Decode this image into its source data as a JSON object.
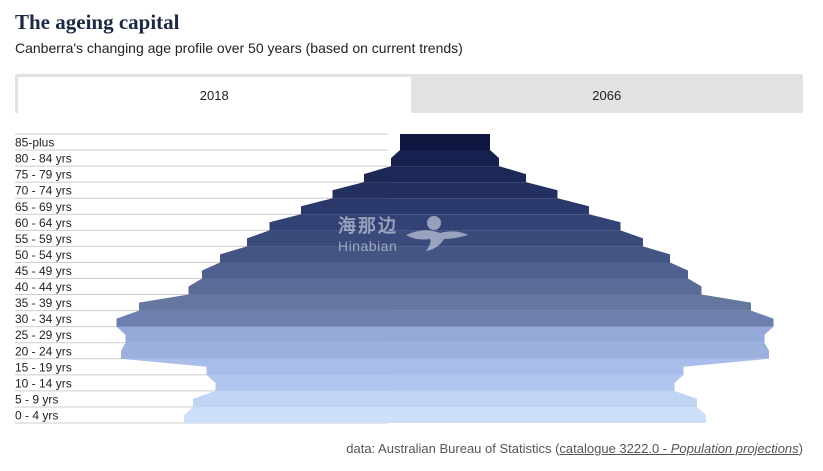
{
  "header": {
    "title": "The ageing capital",
    "subtitle": "Canberra's changing age profile over 50 years (based on current trends)"
  },
  "tabs": [
    {
      "label": "2018",
      "active": true
    },
    {
      "label": "2066",
      "active": false
    }
  ],
  "chart_data": {
    "type": "area",
    "orientation": "horizontal-symmetric",
    "title": "",
    "xlabel": "",
    "ylabel": "",
    "categories": [
      "0 - 4 yrs",
      "5 - 9 yrs",
      "10 - 14 yrs",
      "15 - 19 yrs",
      "20 - 24 yrs",
      "25 - 29 yrs",
      "30 - 34 yrs",
      "35 - 39 yrs",
      "40 - 44 yrs",
      "45 - 49 yrs",
      "50 - 54 yrs",
      "55 - 59 yrs",
      "60 - 64 yrs",
      "65 - 69 yrs",
      "70 - 74 yrs",
      "75 - 79 yrs",
      "80 - 84 yrs",
      "85-plus"
    ],
    "series": [
      {
        "values": [
          58,
          56,
          51,
          53,
          72,
          71,
          73,
          68,
          57,
          54,
          50,
          44,
          39,
          32,
          25,
          18,
          12,
          10
        ]
      }
    ],
    "units": "relative share (estimated from shape)",
    "colors": [
      "#cedff9",
      "#c0d4f4",
      "#b0c6ee",
      "#a8bde9",
      "#9cb0de",
      "#95a9d8",
      "#6d7fae",
      "#65779f",
      "#5a6b98",
      "#4f608e",
      "#445584",
      "#3a4a7b",
      "#324275",
      "#2b386b",
      "#233060",
      "#1d2856",
      "#172150",
      "#0f1640"
    ]
  },
  "source": {
    "prefix": "data: Australian Bureau of Statistics (",
    "link_part1": "catalogue 3222.0 - ",
    "link_part2": "Population projections",
    "suffix": ")"
  },
  "watermark": {
    "cn": "海那边",
    "en": "Hinabian"
  }
}
